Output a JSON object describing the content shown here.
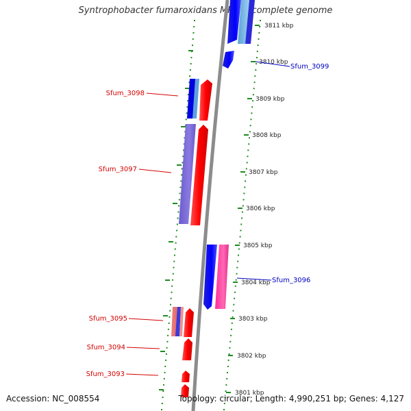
{
  "title": "Syntrophobacter fumaroxidans MPOB, complete genome",
  "accession": "Accession: NC_008554",
  "topology": "Topology: circular; Length: 4,990,251 bp; Genes: 4,127",
  "colors": {
    "backbone": "#8c8c8c",
    "dots": "#1e8a1e",
    "label_red": "#d40000",
    "label_blue": "#0000c0"
  },
  "ticks": [
    "3811 kbp",
    "3810 kbp",
    "3809 kbp",
    "3808 kbp",
    "3807 kbp",
    "3806 kbp",
    "3805 kbp",
    "3804 kbp",
    "3803 kbp",
    "3802 kbp",
    "3801 kbp"
  ],
  "gene_labels": [
    {
      "text": "Sfum_3099",
      "color": "blue"
    },
    {
      "text": "Sfum_3098",
      "color": "red"
    },
    {
      "text": "Sfum_3097",
      "color": "red"
    },
    {
      "text": "Sfum_3096",
      "color": "blue"
    },
    {
      "text": "Sfum_3095",
      "color": "red"
    },
    {
      "text": "Sfum_3094",
      "color": "red"
    },
    {
      "text": "Sfum_3093",
      "color": "red"
    }
  ]
}
